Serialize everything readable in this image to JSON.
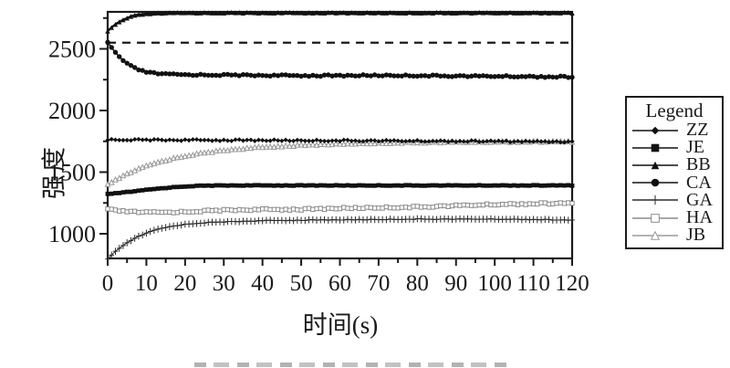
{
  "chart_data": {
    "type": "line",
    "title": "",
    "xlabel": "时间(s)",
    "ylabel": "强度",
    "xlim": [
      0,
      120
    ],
    "ylim": [
      800,
      2800
    ],
    "x_major_ticks": [
      0,
      10,
      20,
      30,
      40,
      50,
      60,
      70,
      80,
      90,
      100,
      110,
      120
    ],
    "x_minor_step": 5,
    "y_major_ticks": [
      1000,
      1500,
      2000,
      2500
    ],
    "y_minor_step": 250,
    "grid": false,
    "frame_color": "#1a1a1a",
    "legend": {
      "title": "Legend",
      "position": "right-outside"
    },
    "reference_line": {
      "style": "dashed",
      "y": 2550,
      "color": "#1a1a1a"
    },
    "series": [
      {
        "name": "ZZ",
        "marker": "filled-diamond",
        "color": "#111111",
        "points": [
          [
            0,
            1763
          ],
          [
            20,
            1760
          ],
          [
            40,
            1758
          ],
          [
            60,
            1756
          ],
          [
            80,
            1753
          ],
          [
            100,
            1750
          ],
          [
            120,
            1747
          ]
        ]
      },
      {
        "name": "JE",
        "marker": "filled-square",
        "color": "#111111",
        "points": [
          [
            0,
            1322
          ],
          [
            2,
            1328
          ],
          [
            5,
            1338
          ],
          [
            8,
            1348
          ],
          [
            10,
            1356
          ],
          [
            13,
            1366
          ],
          [
            16,
            1375
          ],
          [
            19,
            1382
          ],
          [
            22,
            1387
          ],
          [
            25,
            1390
          ],
          [
            30,
            1392
          ],
          [
            120,
            1392
          ]
        ]
      },
      {
        "name": "BB",
        "marker": "filled-triangle",
        "color": "#111111",
        "points": [
          [
            0,
            2645
          ],
          [
            1,
            2672
          ],
          [
            2,
            2698
          ],
          [
            3,
            2718
          ],
          [
            4,
            2735
          ],
          [
            5,
            2750
          ],
          [
            6,
            2762
          ],
          [
            7,
            2770
          ],
          [
            8,
            2777
          ],
          [
            10,
            2784
          ],
          [
            12,
            2788
          ],
          [
            15,
            2791
          ],
          [
            20,
            2793
          ],
          [
            120,
            2793
          ]
        ]
      },
      {
        "name": "CA",
        "marker": "filled-circle",
        "color": "#111111",
        "points": [
          [
            0,
            2550
          ],
          [
            1,
            2510
          ],
          [
            2,
            2470
          ],
          [
            3,
            2435
          ],
          [
            4,
            2405
          ],
          [
            5,
            2380
          ],
          [
            6,
            2360
          ],
          [
            8,
            2330
          ],
          [
            10,
            2312
          ],
          [
            12,
            2302
          ],
          [
            15,
            2295
          ],
          [
            20,
            2290
          ],
          [
            30,
            2288
          ],
          [
            40,
            2285
          ],
          [
            50,
            2283
          ],
          [
            60,
            2283
          ],
          [
            70,
            2285
          ],
          [
            80,
            2283
          ],
          [
            90,
            2280
          ],
          [
            100,
            2278
          ],
          [
            110,
            2275
          ],
          [
            120,
            2272
          ]
        ]
      },
      {
        "name": "GA",
        "marker": "plus",
        "color": "#2b2b2b",
        "points": [
          [
            0,
            795
          ],
          [
            2,
            855
          ],
          [
            4,
            905
          ],
          [
            6,
            945
          ],
          [
            8,
            978
          ],
          [
            10,
            1005
          ],
          [
            12,
            1027
          ],
          [
            14,
            1044
          ],
          [
            16,
            1057
          ],
          [
            18,
            1068
          ],
          [
            20,
            1076
          ],
          [
            23,
            1085
          ],
          [
            26,
            1091
          ],
          [
            30,
            1096
          ],
          [
            35,
            1101
          ],
          [
            40,
            1106
          ],
          [
            45,
            1108
          ],
          [
            50,
            1110
          ],
          [
            55,
            1112
          ],
          [
            60,
            1113
          ],
          [
            70,
            1116
          ],
          [
            80,
            1119
          ],
          [
            90,
            1119
          ],
          [
            100,
            1119
          ],
          [
            110,
            1116
          ],
          [
            120,
            1110
          ]
        ]
      },
      {
        "name": "HA",
        "marker": "open-square",
        "color": "#8a8a8a",
        "points": [
          [
            0,
            1197
          ],
          [
            3,
            1185
          ],
          [
            6,
            1178
          ],
          [
            10,
            1173
          ],
          [
            15,
            1174
          ],
          [
            20,
            1178
          ],
          [
            25,
            1185
          ],
          [
            30,
            1191
          ],
          [
            35,
            1194
          ],
          [
            40,
            1196
          ],
          [
            45,
            1197
          ],
          [
            50,
            1198
          ],
          [
            55,
            1202
          ],
          [
            60,
            1207
          ],
          [
            70,
            1212
          ],
          [
            80,
            1217
          ],
          [
            90,
            1228
          ],
          [
            100,
            1238
          ],
          [
            110,
            1244
          ],
          [
            120,
            1248
          ]
        ]
      },
      {
        "name": "JB",
        "marker": "open-triangle",
        "color": "#9a9a9a",
        "points": [
          [
            0,
            1400
          ],
          [
            2,
            1437
          ],
          [
            4,
            1470
          ],
          [
            6,
            1500
          ],
          [
            8,
            1527
          ],
          [
            10,
            1550
          ],
          [
            12,
            1572
          ],
          [
            15,
            1598
          ],
          [
            18,
            1620
          ],
          [
            21,
            1638
          ],
          [
            25,
            1658
          ],
          [
            30,
            1678
          ],
          [
            35,
            1692
          ],
          [
            40,
            1703
          ],
          [
            45,
            1712
          ],
          [
            50,
            1719
          ],
          [
            55,
            1725
          ],
          [
            60,
            1730
          ],
          [
            70,
            1737
          ],
          [
            80,
            1742
          ],
          [
            90,
            1745
          ],
          [
            100,
            1747
          ],
          [
            110,
            1748
          ],
          [
            120,
            1749
          ]
        ]
      }
    ]
  }
}
